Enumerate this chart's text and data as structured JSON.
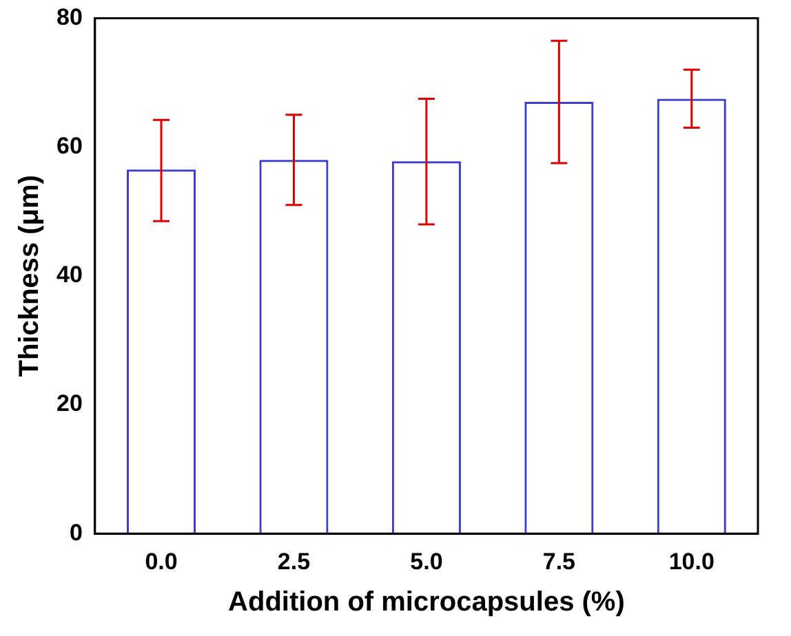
{
  "chart_data": {
    "type": "bar",
    "xlabel": "Addition of microcapsules (%)",
    "ylabel": "Thickness (μm)",
    "categories": [
      "0.0",
      "2.5",
      "5.0",
      "7.5",
      "10.0"
    ],
    "values": [
      56.5,
      58,
      57.8,
      67,
      67.5
    ],
    "errors": [
      [
        48.5,
        64.2
      ],
      [
        51,
        65
      ],
      [
        48,
        67.5
      ],
      [
        57.5,
        76.5
      ],
      [
        63,
        72
      ]
    ],
    "color": "#3b3bd6",
    "ylim": [
      0,
      80
    ],
    "yticks": [
      0,
      20,
      40,
      60,
      80
    ],
    "grid": false,
    "legend": false
  }
}
